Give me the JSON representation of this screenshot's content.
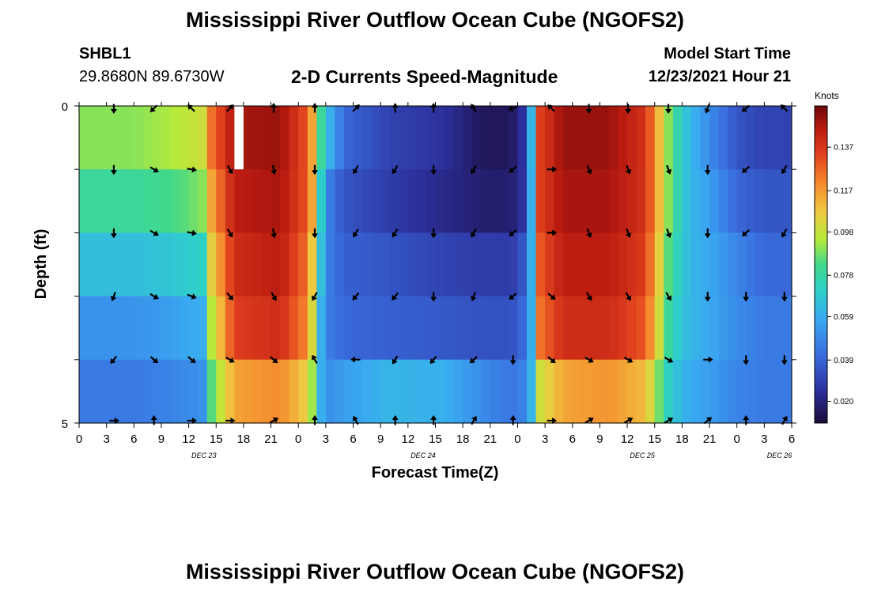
{
  "header": {
    "title": "Mississippi River Outflow Ocean Cube (NGOFS2)",
    "station_id": "SHBL1",
    "coords": "29.8680N  89.6730W",
    "plot_title": "2-D Currents Speed-Magnitude",
    "start_label": "Model Start Time",
    "start_value": "12/23/2021 Hour 21"
  },
  "footer": {
    "title": "Mississippi River Outflow Ocean Cube (NGOFS2)"
  },
  "chart_data": {
    "type": "heatmap",
    "title": "2-D Currents Speed-Magnitude",
    "xlabel": "Forecast Time(Z)",
    "ylabel": "Depth (ft)",
    "x_tick_labels": [
      "0",
      "3",
      "6",
      "9",
      "12",
      "15",
      "18",
      "21",
      "0",
      "3",
      "6",
      "9",
      "12",
      "15",
      "18",
      "21",
      "0",
      "3",
      "6",
      "9",
      "12",
      "15",
      "18",
      "21",
      "0",
      "3",
      "6"
    ],
    "date_labels": [
      {
        "text": "DEC 23",
        "hour_index": 14
      },
      {
        "text": "DEC 24",
        "hour_index": 38
      },
      {
        "text": "DEC 25",
        "hour_index": 62
      },
      {
        "text": "DEC 26",
        "hour_index": 77
      }
    ],
    "y_tick_labels": [
      "0",
      "5"
    ],
    "ylim": [
      0,
      5
    ],
    "x_range_hours": [
      0,
      78
    ],
    "colorbar": {
      "unit": "Knots",
      "ticks": [
        0.02,
        0.039,
        0.059,
        0.078,
        0.098,
        0.117,
        0.137
      ],
      "tick_labels": [
        "0.020",
        "0.039",
        "0.059",
        "0.078",
        "0.098",
        "0.117",
        "0.137"
      ],
      "range": [
        0.01,
        0.156
      ]
    },
    "layers": 5,
    "speed_knots": {
      "hours": [
        0,
        6,
        10,
        12,
        13.5,
        14.5,
        17,
        22,
        25,
        26,
        26.5,
        27.5,
        29,
        34,
        40,
        44,
        47,
        48,
        49,
        49.5,
        50.5,
        53,
        58,
        62,
        63,
        64.5,
        66,
        67,
        69,
        72,
        75,
        78
      ],
      "depth0": [
        0.09,
        0.09,
        0.094,
        0.096,
        0.1,
        0.125,
        0.148,
        0.15,
        0.13,
        0.1,
        0.08,
        0.06,
        0.04,
        0.03,
        0.025,
        0.015,
        0.015,
        0.02,
        0.03,
        0.062,
        0.135,
        0.15,
        0.15,
        0.138,
        0.12,
        0.09,
        0.07,
        0.062,
        0.05,
        0.035,
        0.03,
        0.03
      ],
      "depth1": [
        0.08,
        0.08,
        0.083,
        0.086,
        0.09,
        0.115,
        0.145,
        0.148,
        0.13,
        0.1,
        0.07,
        0.045,
        0.035,
        0.028,
        0.022,
        0.018,
        0.018,
        0.02,
        0.03,
        0.06,
        0.135,
        0.148,
        0.148,
        0.138,
        0.12,
        0.09,
        0.07,
        0.062,
        0.055,
        0.04,
        0.035,
        0.035
      ],
      "depth2": [
        0.065,
        0.065,
        0.068,
        0.07,
        0.072,
        0.105,
        0.14,
        0.145,
        0.125,
        0.09,
        0.065,
        0.045,
        0.038,
        0.035,
        0.03,
        0.028,
        0.028,
        0.03,
        0.04,
        0.06,
        0.13,
        0.145,
        0.145,
        0.135,
        0.115,
        0.085,
        0.068,
        0.062,
        0.058,
        0.048,
        0.04,
        0.04
      ],
      "depth3": [
        0.052,
        0.052,
        0.055,
        0.058,
        0.06,
        0.095,
        0.135,
        0.14,
        0.12,
        0.085,
        0.06,
        0.045,
        0.04,
        0.038,
        0.036,
        0.034,
        0.034,
        0.036,
        0.044,
        0.06,
        0.125,
        0.14,
        0.14,
        0.13,
        0.11,
        0.08,
        0.066,
        0.062,
        0.058,
        0.05,
        0.045,
        0.045
      ],
      "depth4": [
        0.045,
        0.045,
        0.048,
        0.05,
        0.052,
        0.085,
        0.115,
        0.12,
        0.105,
        0.08,
        0.06,
        0.052,
        0.055,
        0.062,
        0.06,
        0.05,
        0.044,
        0.045,
        0.05,
        0.062,
        0.1,
        0.115,
        0.118,
        0.11,
        0.095,
        0.072,
        0.062,
        0.058,
        0.055,
        0.048,
        0.045,
        0.045
      ]
    },
    "missing_cell": {
      "hour": 17,
      "layer": 0
    },
    "arrow_hours": [
      3.8,
      8.2,
      12.3,
      16.5,
      21.3,
      25.8,
      30.3,
      34.6,
      38.8,
      43.2,
      47.5,
      51.7,
      55.8,
      60.1,
      64.5,
      68.8,
      73.0,
      77.2
    ],
    "arrow_directions_deg": [
      [
        270,
        225,
        135,
        45,
        90,
        90,
        45,
        90,
        90,
        120,
        200,
        135,
        270,
        270,
        270,
        250,
        220,
        135
      ],
      [
        270,
        330,
        350,
        300,
        280,
        270,
        240,
        240,
        270,
        240,
        220,
        0,
        290,
        290,
        290,
        270,
        220,
        240
      ],
      [
        270,
        330,
        350,
        300,
        280,
        270,
        240,
        240,
        270,
        240,
        220,
        0,
        290,
        290,
        290,
        270,
        220,
        240
      ],
      [
        250,
        330,
        340,
        310,
        300,
        240,
        230,
        230,
        270,
        250,
        220,
        320,
        300,
        300,
        300,
        270,
        270,
        270
      ],
      [
        230,
        320,
        320,
        330,
        320,
        120,
        180,
        240,
        230,
        220,
        270,
        320,
        330,
        330,
        330,
        0,
        270,
        270
      ],
      [
        0,
        90,
        0,
        0,
        30,
        90,
        120,
        90,
        90,
        60,
        90,
        0,
        30,
        30,
        30,
        40,
        90,
        60
      ]
    ]
  }
}
